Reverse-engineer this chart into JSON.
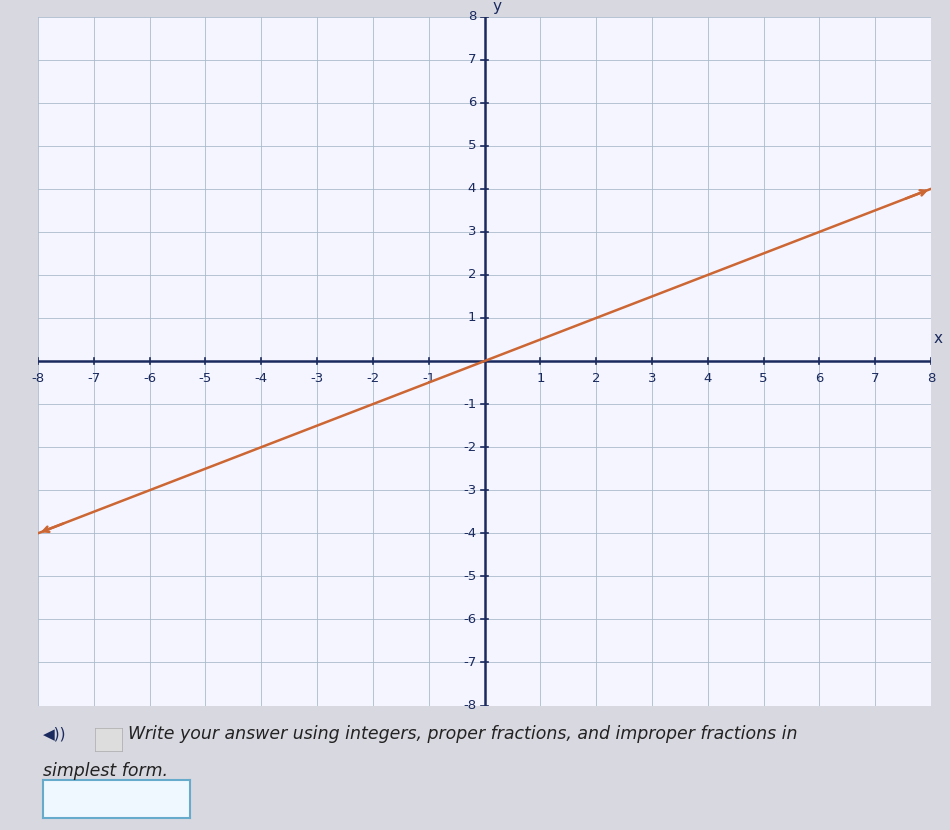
{
  "xlim": [
    -8,
    8
  ],
  "ylim": [
    -8,
    8
  ],
  "xticks": [
    -8,
    -7,
    -6,
    -5,
    -4,
    -3,
    -2,
    -1,
    1,
    2,
    3,
    4,
    5,
    6,
    7,
    8
  ],
  "yticks": [
    -8,
    -7,
    -6,
    -5,
    -4,
    -3,
    -2,
    -1,
    1,
    2,
    3,
    4,
    5,
    6,
    7,
    8
  ],
  "line_x": [
    -8,
    8
  ],
  "line_y": [
    -4,
    4
  ],
  "line_color": "#cc6633",
  "line_width": 1.8,
  "plot_bg_color": "#f5f5ff",
  "outer_bg_color": "#d8d8e0",
  "grid_color": "#aabbcc",
  "axis_color": "#1a2a5e",
  "tick_label_color": "#1a2a5e",
  "xlabel": "x",
  "ylabel": "y",
  "text_line1": "Write your answer using integers, proper fractions, and improper fractions in",
  "text_line2": "simplest form.",
  "text_color": "#222222",
  "text_fontsize": 12.5,
  "box_color": "#66aacc"
}
